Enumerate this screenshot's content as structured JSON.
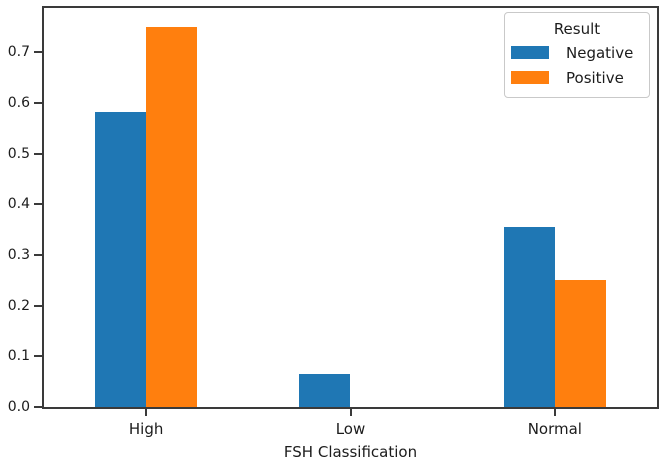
{
  "chart_data": {
    "type": "bar",
    "title": "",
    "xlabel": "FSH Classification",
    "ylabel": "",
    "categories": [
      "High",
      "Low",
      "Normal"
    ],
    "series": [
      {
        "name": "Negative",
        "color": "#1f77b4",
        "values": [
          0.583,
          0.065,
          0.355
        ]
      },
      {
        "name": "Positive",
        "color": "#ff7f0e",
        "values": [
          0.75,
          0.0,
          0.25
        ]
      }
    ],
    "ylim": [
      0,
      0.7875
    ],
    "yticks": [
      0.0,
      0.1,
      0.2,
      0.3,
      0.4,
      0.5,
      0.6,
      0.7
    ],
    "ytick_labels": [
      "0.0",
      "0.1",
      "0.2",
      "0.3",
      "0.4",
      "0.5",
      "0.6",
      "0.7"
    ],
    "grid": false,
    "bar_group_width": 0.5,
    "legend": {
      "title": "Result",
      "position": "upper right"
    }
  }
}
